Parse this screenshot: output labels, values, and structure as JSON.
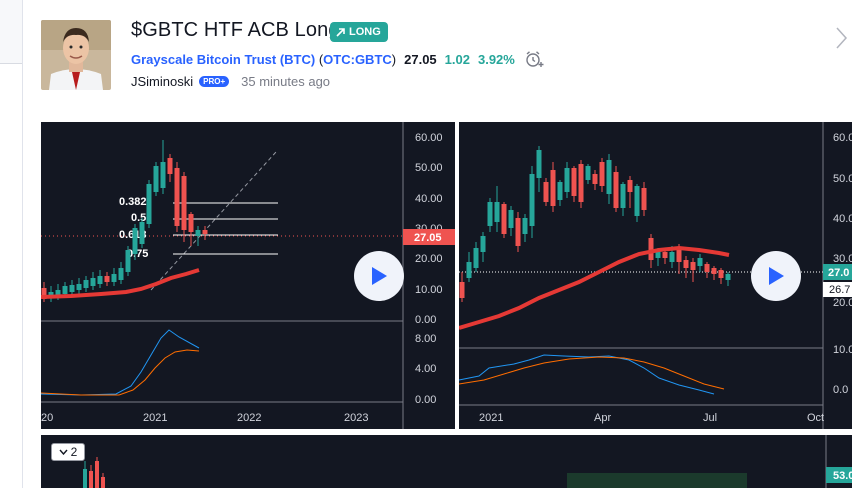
{
  "idea": {
    "title": "$GBTC HTF ACB Long",
    "direction_badge": "LONG",
    "symbol_name": "Grayscale Bitcoin Trust (BTC)",
    "symbol_code": "OTC:GBTC",
    "price": "27.05",
    "change": "1.02",
    "change_pct": "3.92%",
    "author": "JSiminoski",
    "author_badge": "PRO+",
    "posted_time": "35 minutes ago"
  },
  "chart1": {
    "price_ticks": [
      "60.00",
      "50.00",
      "40.00",
      "30.00",
      "20.00",
      "10.00",
      "0.00"
    ],
    "osc_ticks": [
      "8.00",
      "4.00",
      "0.00"
    ],
    "time_ticks": [
      "20",
      "2021",
      "2022",
      "2023"
    ],
    "fib_labels": [
      "0.382",
      "0.5",
      "0.618",
      "0.75"
    ],
    "last_price": "27.05"
  },
  "chart2": {
    "price_ticks": [
      "60.0",
      "50.0",
      "40.0",
      "30.0",
      "20.0"
    ],
    "osc_ticks": [
      "10.0",
      "0.0"
    ],
    "time_ticks": [
      "2021",
      "Apr",
      "Jul",
      "Oct"
    ],
    "last_price": "27.0",
    "sma_value": "26.7"
  },
  "chart3": {
    "collapse_count": "2",
    "price_tag": "53.0"
  },
  "colors": {
    "accent": "#2962ff",
    "up": "#26a69a",
    "down": "#ef5350",
    "chart_bg": "#131722",
    "ma_line": "#e53935",
    "macd_line": "#2196f3",
    "signal_line": "#ff6d00"
  },
  "icons": [
    "play-icon",
    "alarm-add-icon",
    "chevron-right-icon",
    "chevron-down-icon",
    "arrow-up-right-icon"
  ]
}
